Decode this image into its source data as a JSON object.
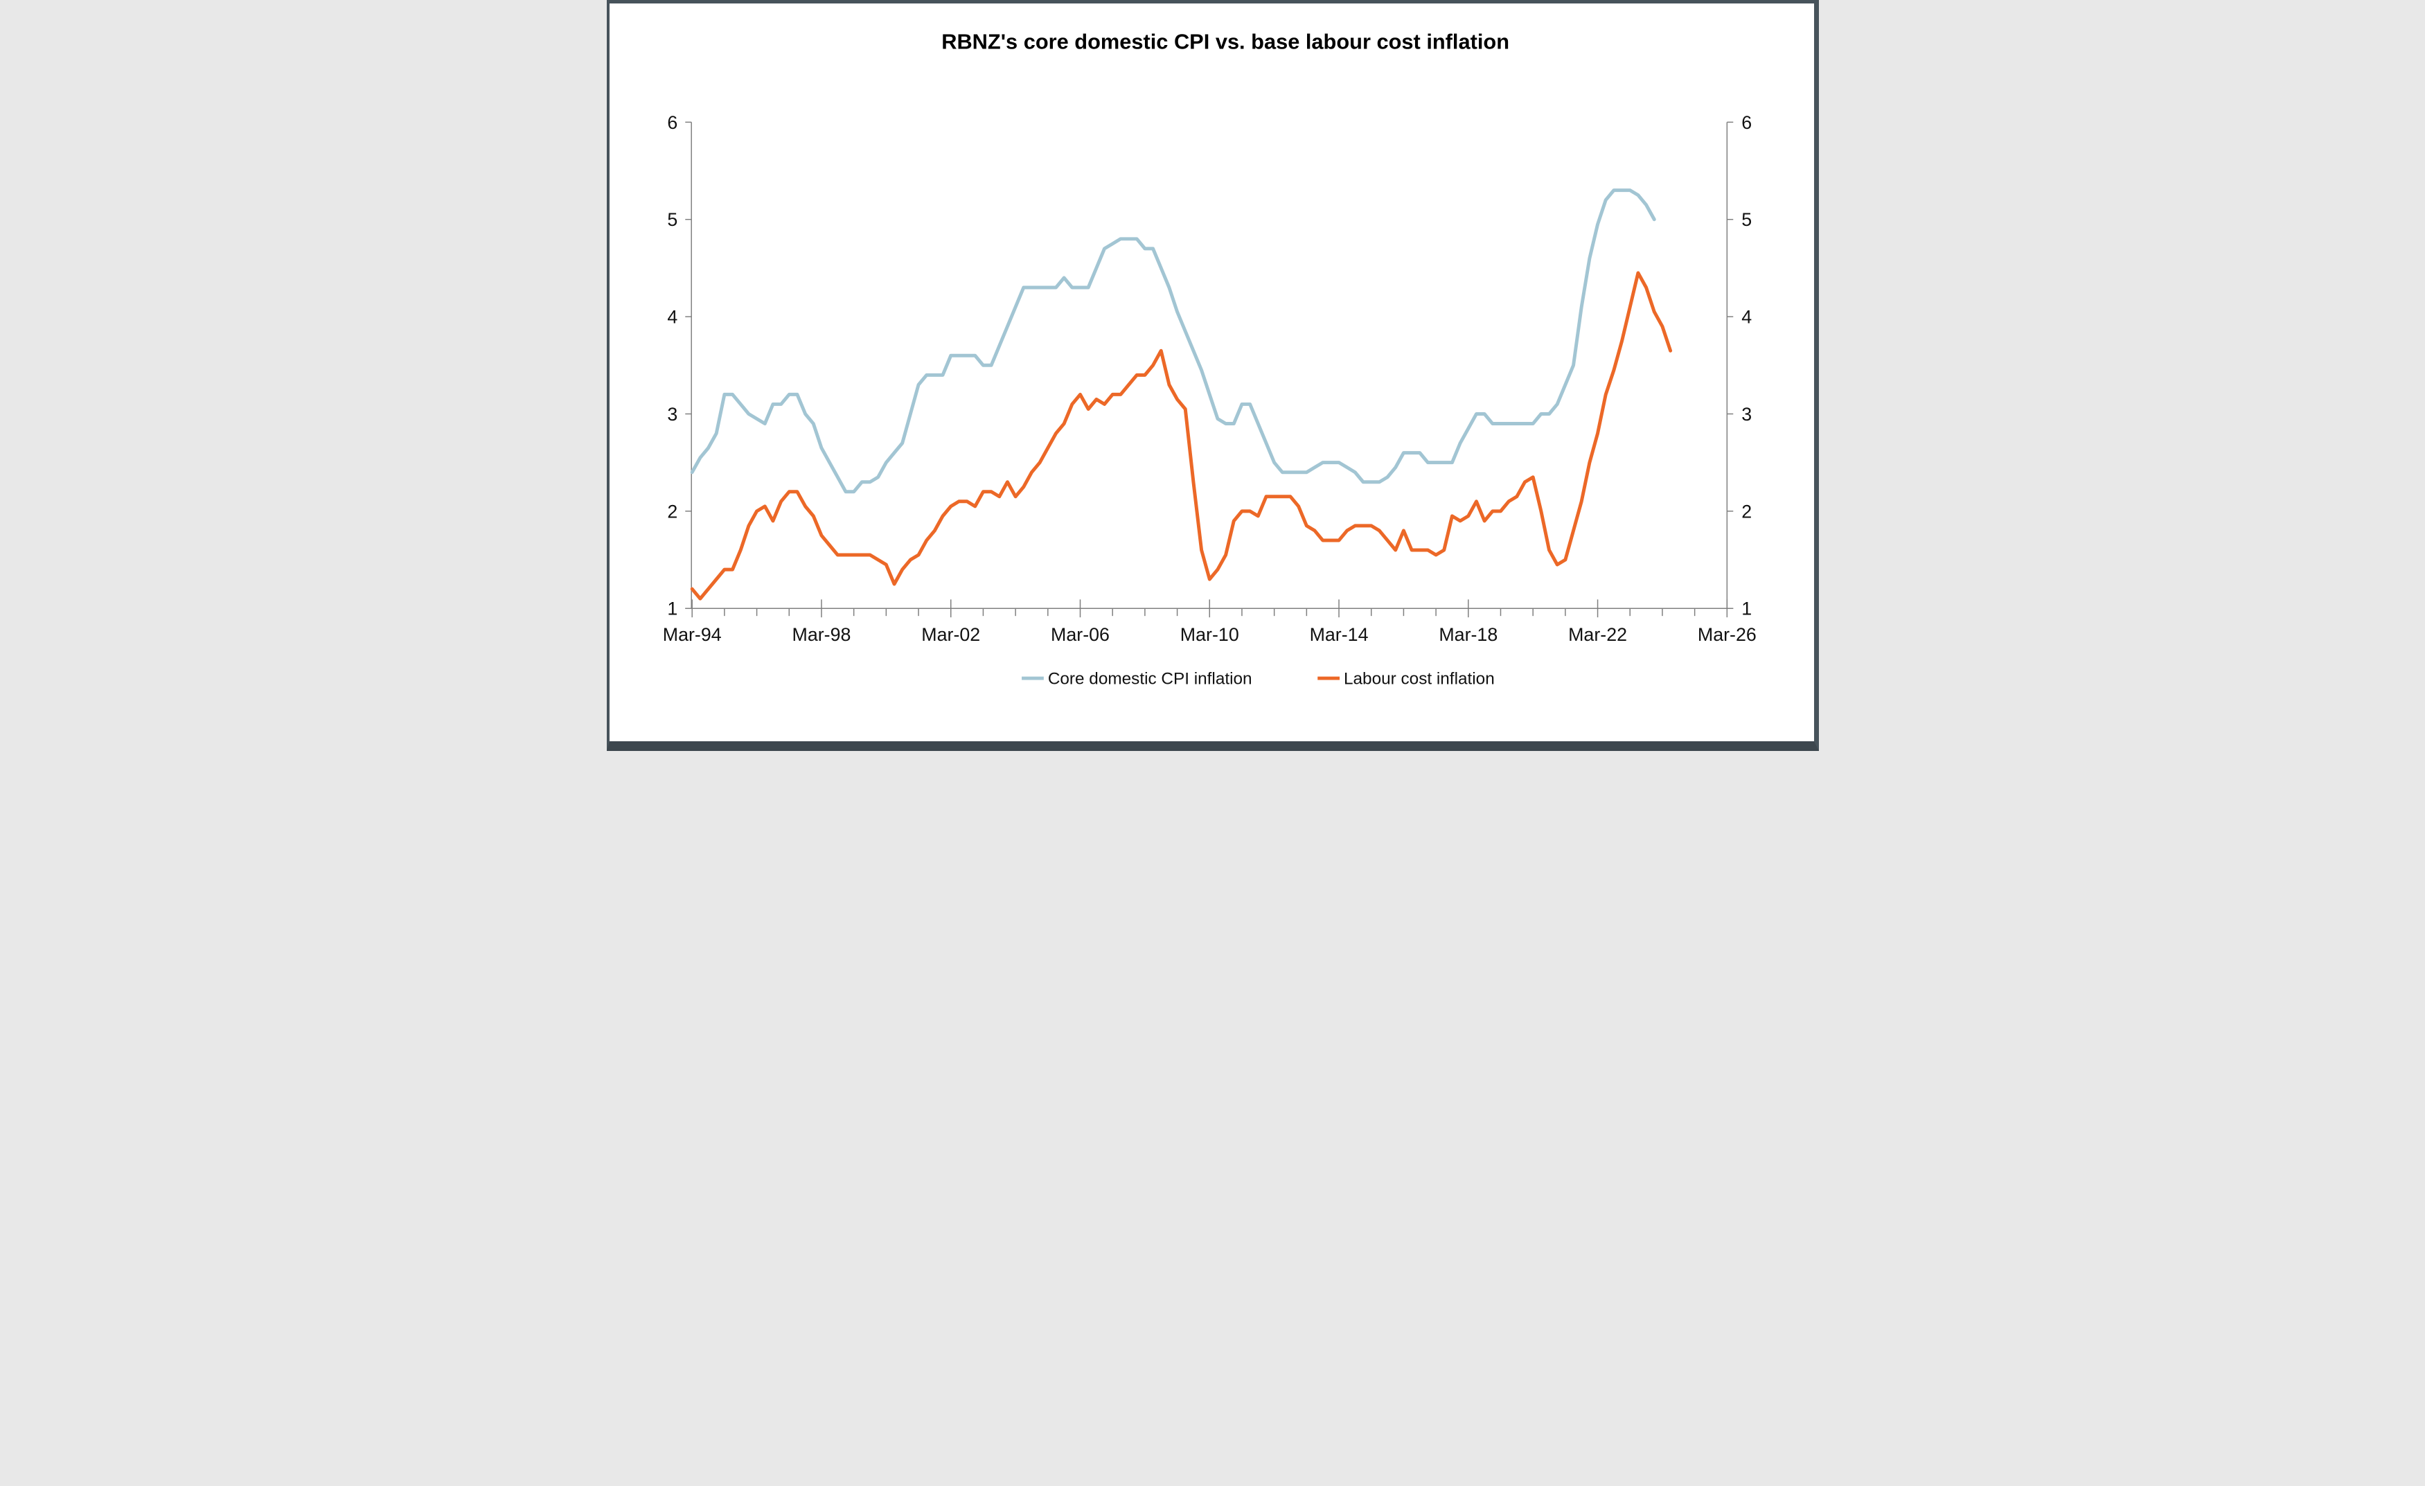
{
  "title": "RBNZ's core domestic CPI vs. base labour cost inflation",
  "legend": {
    "core_label": "Core domestic CPI inflation",
    "labour_label": "Labour cost inflation"
  },
  "colors": {
    "core_line": "#a2c5d3",
    "labour_line": "#ec6827",
    "axis": "#7f7f7f",
    "text": "#111111"
  },
  "chart_data": {
    "type": "line",
    "title": "RBNZ's core domestic CPI vs. base labour cost inflation",
    "xlabel": "",
    "ylabel": "",
    "grid": "off",
    "legend_position": "bottom-center",
    "ylim": [
      1,
      6
    ],
    "y_ticks": [
      1,
      2,
      3,
      4,
      5,
      6
    ],
    "y_axis_both_sides": true,
    "x_frequency": "quarterly",
    "x_start": "Mar-94",
    "x_end_axis": "Mar-26",
    "x_tick_labels": [
      "Mar-94",
      "Mar-98",
      "Mar-02",
      "Mar-06",
      "Mar-10",
      "Mar-14",
      "Mar-18",
      "Mar-22",
      "Mar-26"
    ],
    "minor_x_ticks": "yearly",
    "series": [
      {
        "name": "Core domestic CPI inflation",
        "color": "#a2c5d3",
        "start": "Mar-94",
        "end": "Dec-23",
        "values": [
          2.4,
          2.55,
          2.65,
          2.8,
          3.2,
          3.2,
          3.1,
          3.0,
          2.95,
          2.9,
          3.1,
          3.1,
          3.2,
          3.2,
          3.0,
          2.9,
          2.65,
          2.5,
          2.35,
          2.2,
          2.2,
          2.3,
          2.3,
          2.35,
          2.5,
          2.6,
          2.7,
          3.0,
          3.3,
          3.4,
          3.4,
          3.4,
          3.6,
          3.6,
          3.6,
          3.6,
          3.5,
          3.5,
          3.7,
          3.9,
          4.1,
          4.3,
          4.3,
          4.3,
          4.3,
          4.3,
          4.4,
          4.3,
          4.3,
          4.3,
          4.5,
          4.7,
          4.75,
          4.8,
          4.8,
          4.8,
          4.7,
          4.7,
          4.5,
          4.3,
          4.05,
          3.85,
          3.65,
          3.45,
          3.2,
          2.95,
          2.9,
          2.9,
          3.1,
          3.1,
          2.9,
          2.7,
          2.5,
          2.4,
          2.4,
          2.4,
          2.4,
          2.45,
          2.5,
          2.5,
          2.5,
          2.45,
          2.4,
          2.3,
          2.3,
          2.3,
          2.35,
          2.45,
          2.6,
          2.6,
          2.6,
          2.5,
          2.5,
          2.5,
          2.5,
          2.7,
          2.85,
          3.0,
          3.0,
          2.9,
          2.9,
          2.9,
          2.9,
          2.9,
          2.9,
          3.0,
          3.0,
          3.1,
          3.3,
          3.5,
          4.1,
          4.6,
          4.95,
          5.2,
          5.3,
          5.3,
          5.3,
          5.25,
          5.15,
          5.0,
          null,
          null
        ]
      },
      {
        "name": "Labour cost inflation",
        "color": "#ec6827",
        "start": "Mar-94",
        "end": "Jun-24",
        "values": [
          1.2,
          1.1,
          1.2,
          1.3,
          1.4,
          1.4,
          1.6,
          1.85,
          2.0,
          2.05,
          1.9,
          2.1,
          2.2,
          2.2,
          2.05,
          1.95,
          1.75,
          1.65,
          1.55,
          1.55,
          1.55,
          1.55,
          1.55,
          1.5,
          1.45,
          1.25,
          1.4,
          1.5,
          1.55,
          1.7,
          1.8,
          1.95,
          2.05,
          2.1,
          2.1,
          2.05,
          2.2,
          2.2,
          2.15,
          2.3,
          2.15,
          2.25,
          2.4,
          2.5,
          2.65,
          2.8,
          2.9,
          3.1,
          3.2,
          3.05,
          3.15,
          3.1,
          3.2,
          3.2,
          3.3,
          3.4,
          3.4,
          3.5,
          3.65,
          3.3,
          3.15,
          3.05,
          2.3,
          1.6,
          1.3,
          1.4,
          1.55,
          1.9,
          2.0,
          2.0,
          1.95,
          2.15,
          2.15,
          2.15,
          2.15,
          2.05,
          1.85,
          1.8,
          1.7,
          1.7,
          1.7,
          1.8,
          1.85,
          1.85,
          1.85,
          1.8,
          1.7,
          1.6,
          1.8,
          1.6,
          1.6,
          1.6,
          1.55,
          1.6,
          1.95,
          1.9,
          1.95,
          2.1,
          1.9,
          2.0,
          2.0,
          2.1,
          2.15,
          2.3,
          2.35,
          2.0,
          1.6,
          1.45,
          1.5,
          1.8,
          2.1,
          2.5,
          2.8,
          3.2,
          3.45,
          3.75,
          4.1,
          4.45,
          4.3,
          4.05,
          3.9,
          3.65
        ]
      }
    ]
  }
}
